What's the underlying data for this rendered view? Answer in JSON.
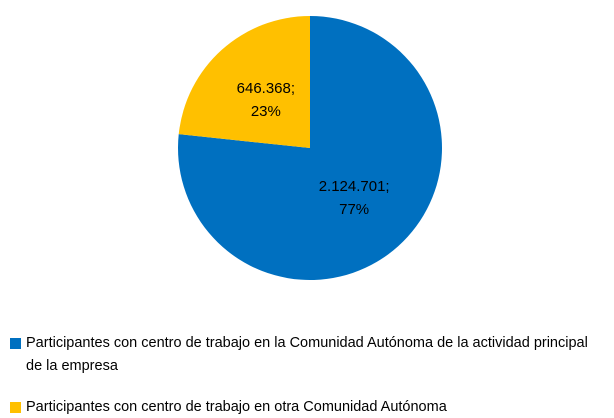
{
  "chart_data": {
    "type": "pie",
    "categories": [
      "Participantes con centro de trabajo en la Comunidad Autónoma de la actividad principal de la empresa",
      "Participantes con centro de trabajo en otra Comunidad Autónoma"
    ],
    "values": [
      2124701,
      646368
    ],
    "value_labels": [
      "2.124.701;",
      "646.368;"
    ],
    "percent_labels": [
      "77%",
      "23%"
    ],
    "colors": [
      "#0070C0",
      "#FFC000"
    ],
    "legend": "bottom"
  }
}
